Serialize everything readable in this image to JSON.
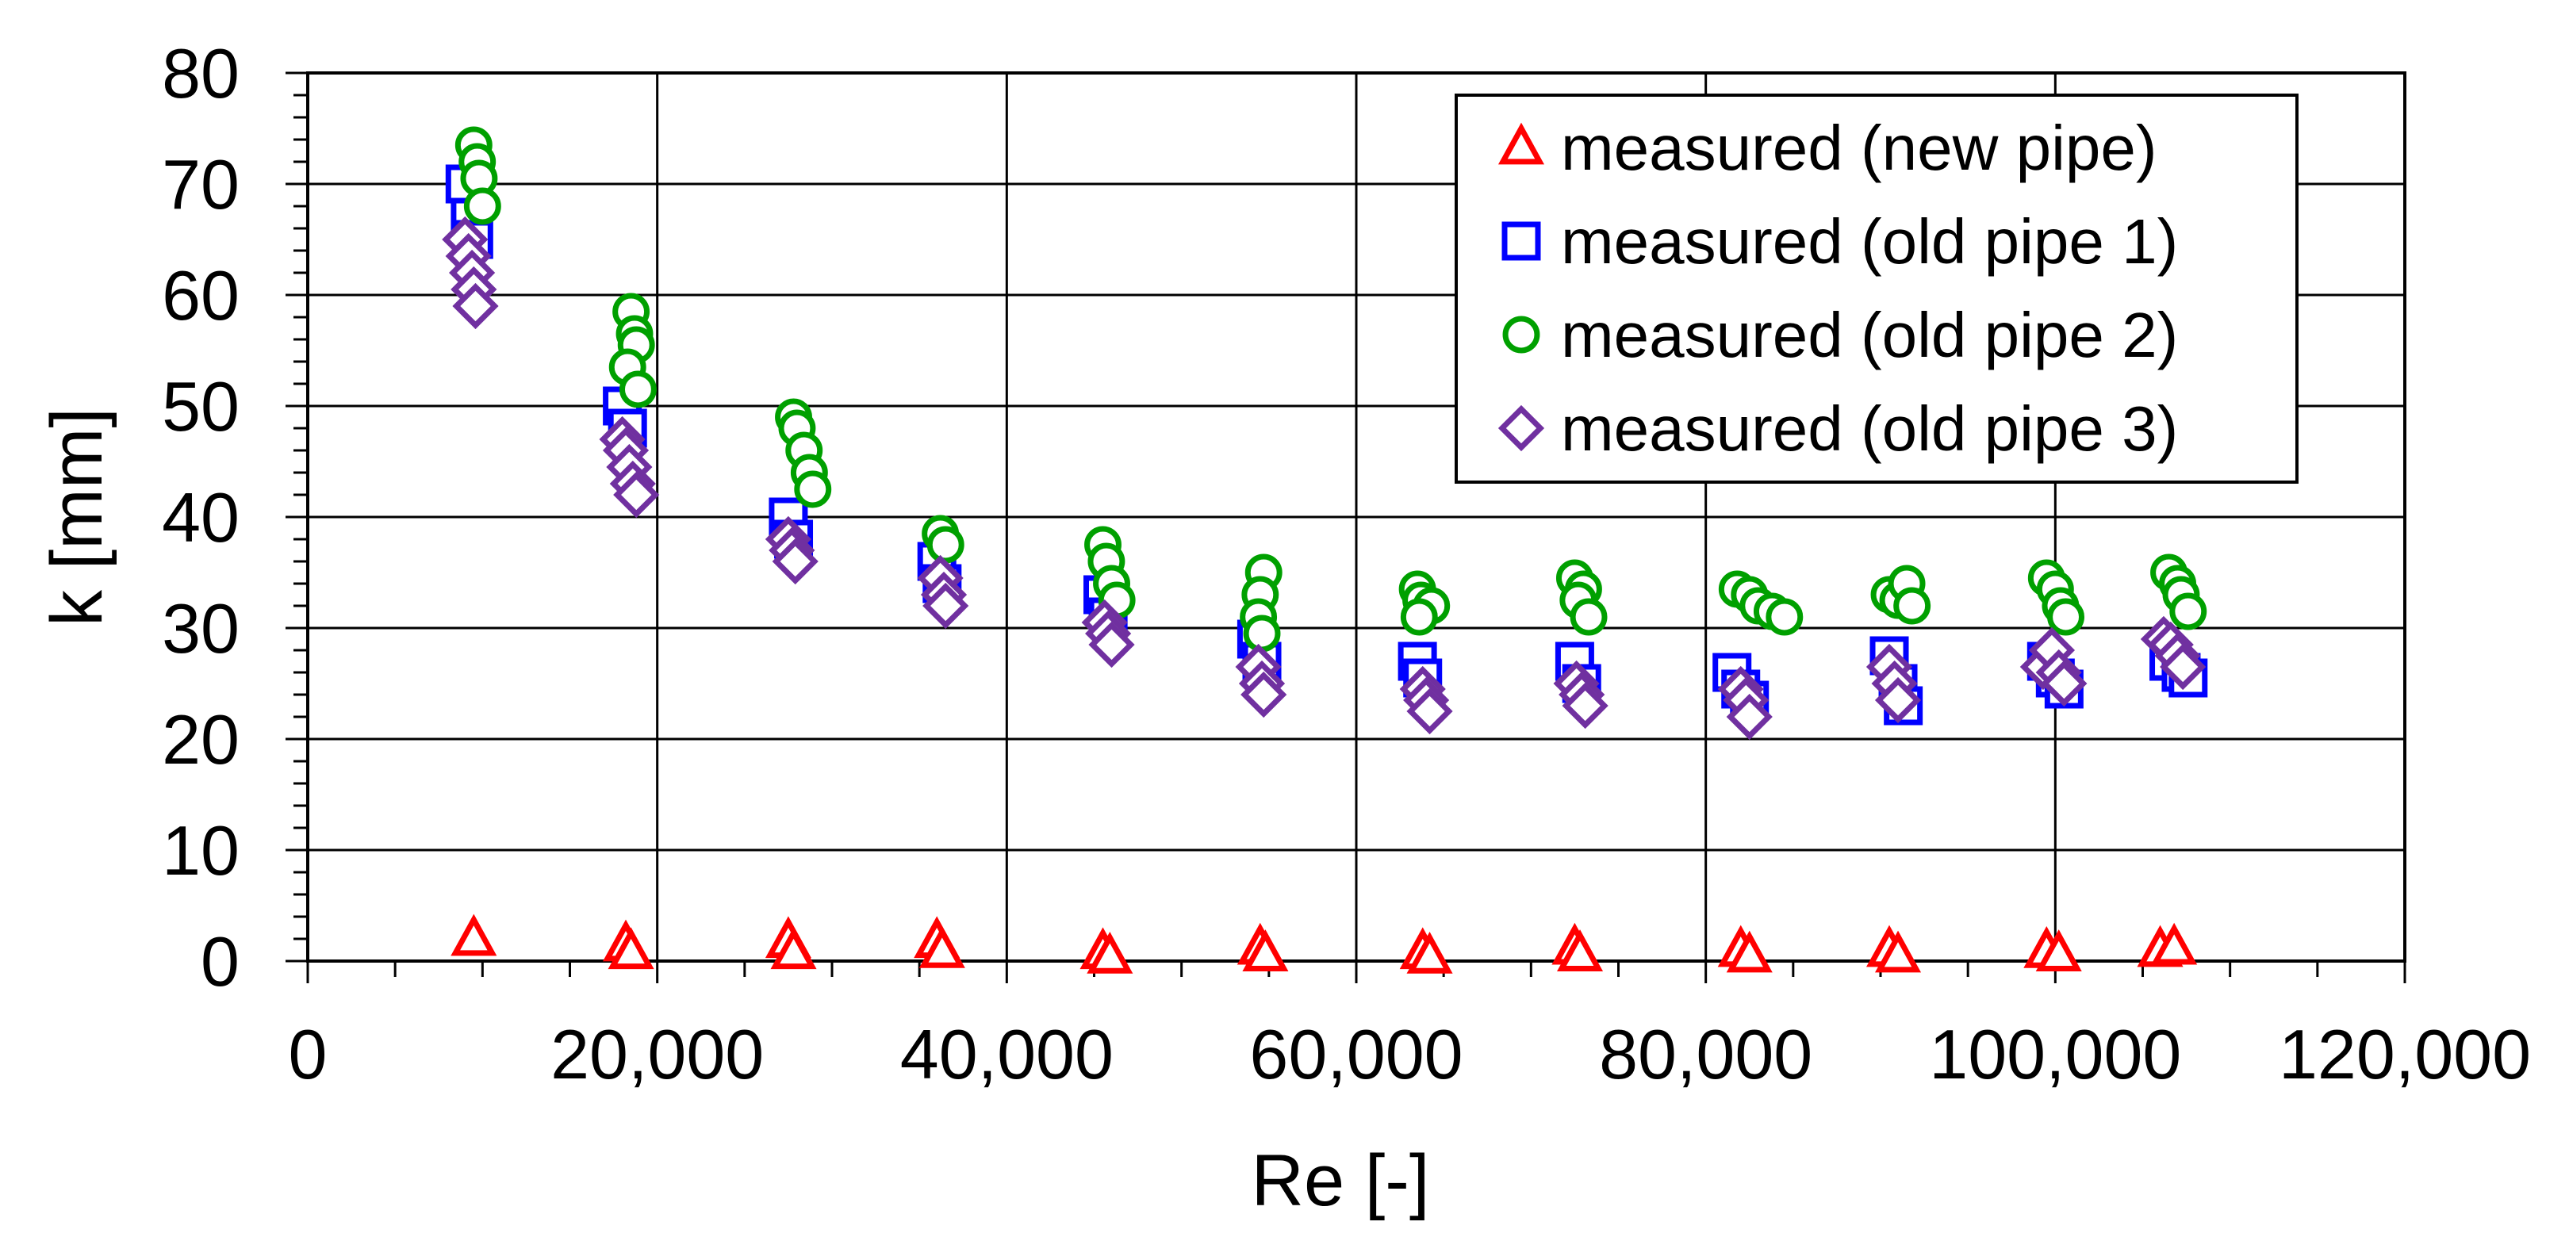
{
  "chart_data": {
    "type": "scatter",
    "xlabel": "Re [-]",
    "ylabel": "k [mm]",
    "xlim": [
      0,
      120000
    ],
    "ylim": [
      0,
      80
    ],
    "xticks": [
      "0",
      "20,000",
      "40,000",
      "60,000",
      "80,000",
      "100,000",
      "120,000"
    ],
    "yticks": [
      "0",
      "10",
      "20",
      "30",
      "40",
      "50",
      "60",
      "70",
      "80"
    ],
    "grid": true,
    "legend_position": "top-right",
    "series": [
      {
        "name": "measured (new pipe)",
        "marker": "triangle",
        "color": "#ff0000",
        "points": [
          [
            9500,
            2.0
          ],
          [
            18200,
            1.5
          ],
          [
            18500,
            0.8
          ],
          [
            27500,
            1.8
          ],
          [
            27800,
            0.8
          ],
          [
            36000,
            1.8
          ],
          [
            36300,
            0.9
          ],
          [
            45500,
            0.8
          ],
          [
            45900,
            0.4
          ],
          [
            54500,
            1.2
          ],
          [
            54800,
            0.6
          ],
          [
            63800,
            0.8
          ],
          [
            64200,
            0.4
          ],
          [
            72500,
            1.2
          ],
          [
            72800,
            0.6
          ],
          [
            82000,
            1.0
          ],
          [
            82500,
            0.5
          ],
          [
            90500,
            1.0
          ],
          [
            91000,
            0.5
          ],
          [
            99500,
            0.9
          ],
          [
            100200,
            0.6
          ],
          [
            106000,
            1.0
          ],
          [
            106800,
            1.2
          ]
        ]
      },
      {
        "name": "measured (old pipe 1)",
        "marker": "square",
        "color": "#0000ff",
        "points": [
          [
            9000,
            70
          ],
          [
            9300,
            67
          ],
          [
            9500,
            65
          ],
          [
            18000,
            50
          ],
          [
            18300,
            48
          ],
          [
            27500,
            40
          ],
          [
            27800,
            38
          ],
          [
            36000,
            36
          ],
          [
            36300,
            34
          ],
          [
            45500,
            33
          ],
          [
            45800,
            31
          ],
          [
            54300,
            29
          ],
          [
            54600,
            27
          ],
          [
            63500,
            27
          ],
          [
            63800,
            25.5
          ],
          [
            72500,
            27
          ],
          [
            72900,
            25
          ],
          [
            81500,
            26
          ],
          [
            82000,
            24.5
          ],
          [
            82500,
            23.5
          ],
          [
            90500,
            27.5
          ],
          [
            91000,
            25
          ],
          [
            91300,
            23
          ],
          [
            99500,
            27
          ],
          [
            100000,
            25.5
          ],
          [
            100500,
            24.5
          ],
          [
            106500,
            27
          ],
          [
            107200,
            26
          ],
          [
            107600,
            25.5
          ]
        ]
      },
      {
        "name": "measured (old pipe 2)",
        "marker": "circle",
        "color": "#00a000",
        "points": [
          [
            9500,
            73.5
          ],
          [
            9700,
            72
          ],
          [
            9800,
            70.5
          ],
          [
            10000,
            68
          ],
          [
            18500,
            58.5
          ],
          [
            18700,
            56.5
          ],
          [
            18800,
            55.5
          ],
          [
            18300,
            53.5
          ],
          [
            18900,
            51.5
          ],
          [
            27800,
            49
          ],
          [
            28000,
            48
          ],
          [
            28400,
            46
          ],
          [
            28700,
            44
          ],
          [
            28900,
            42.5
          ],
          [
            36200,
            38.5
          ],
          [
            36500,
            37.5
          ],
          [
            45500,
            37.5
          ],
          [
            45700,
            36
          ],
          [
            46000,
            34
          ],
          [
            46300,
            32.5
          ],
          [
            54700,
            35
          ],
          [
            54500,
            33
          ],
          [
            54400,
            31
          ],
          [
            54600,
            29.5
          ],
          [
            63500,
            33.5
          ],
          [
            63700,
            32.5
          ],
          [
            64300,
            32
          ],
          [
            63600,
            31
          ],
          [
            72500,
            34.5
          ],
          [
            73000,
            33.5
          ],
          [
            72700,
            32.5
          ],
          [
            73300,
            31
          ],
          [
            81800,
            33.5
          ],
          [
            82500,
            33
          ],
          [
            83000,
            32
          ],
          [
            83800,
            31.5
          ],
          [
            84500,
            31
          ],
          [
            90500,
            33
          ],
          [
            91000,
            32.5
          ],
          [
            91500,
            34
          ],
          [
            91800,
            32
          ],
          [
            99500,
            34.5
          ],
          [
            100000,
            33.5
          ],
          [
            100300,
            32
          ],
          [
            100600,
            31
          ],
          [
            106500,
            35
          ],
          [
            107000,
            34
          ],
          [
            107200,
            33
          ],
          [
            107600,
            31.5
          ]
        ]
      },
      {
        "name": "measured (old pipe 3)",
        "marker": "diamond",
        "color": "#7030a0",
        "points": [
          [
            9000,
            65
          ],
          [
            9200,
            63.5
          ],
          [
            9400,
            62
          ],
          [
            9500,
            60.5
          ],
          [
            9600,
            59
          ],
          [
            18000,
            47
          ],
          [
            18200,
            46
          ],
          [
            18400,
            44.5
          ],
          [
            18600,
            43
          ],
          [
            18800,
            42
          ],
          [
            27500,
            38
          ],
          [
            27700,
            37
          ],
          [
            27900,
            36
          ],
          [
            36200,
            34.5
          ],
          [
            36400,
            33
          ],
          [
            36500,
            32
          ],
          [
            45600,
            30.5
          ],
          [
            45800,
            29.5
          ],
          [
            46000,
            28.5
          ],
          [
            54400,
            26.5
          ],
          [
            54600,
            25
          ],
          [
            54700,
            24
          ],
          [
            63800,
            24.5
          ],
          [
            64000,
            23.5
          ],
          [
            64200,
            22.5
          ],
          [
            72600,
            25
          ],
          [
            72900,
            24
          ],
          [
            73100,
            23
          ],
          [
            82000,
            24.5
          ],
          [
            82300,
            23.5
          ],
          [
            82500,
            22
          ],
          [
            90500,
            26.5
          ],
          [
            90800,
            25
          ],
          [
            91000,
            23.5
          ],
          [
            99300,
            26.5
          ],
          [
            99800,
            28
          ],
          [
            100200,
            26
          ],
          [
            100500,
            25
          ],
          [
            106200,
            29
          ],
          [
            106600,
            28.5
          ],
          [
            107000,
            27.5
          ],
          [
            107300,
            26.5
          ]
        ]
      }
    ]
  }
}
